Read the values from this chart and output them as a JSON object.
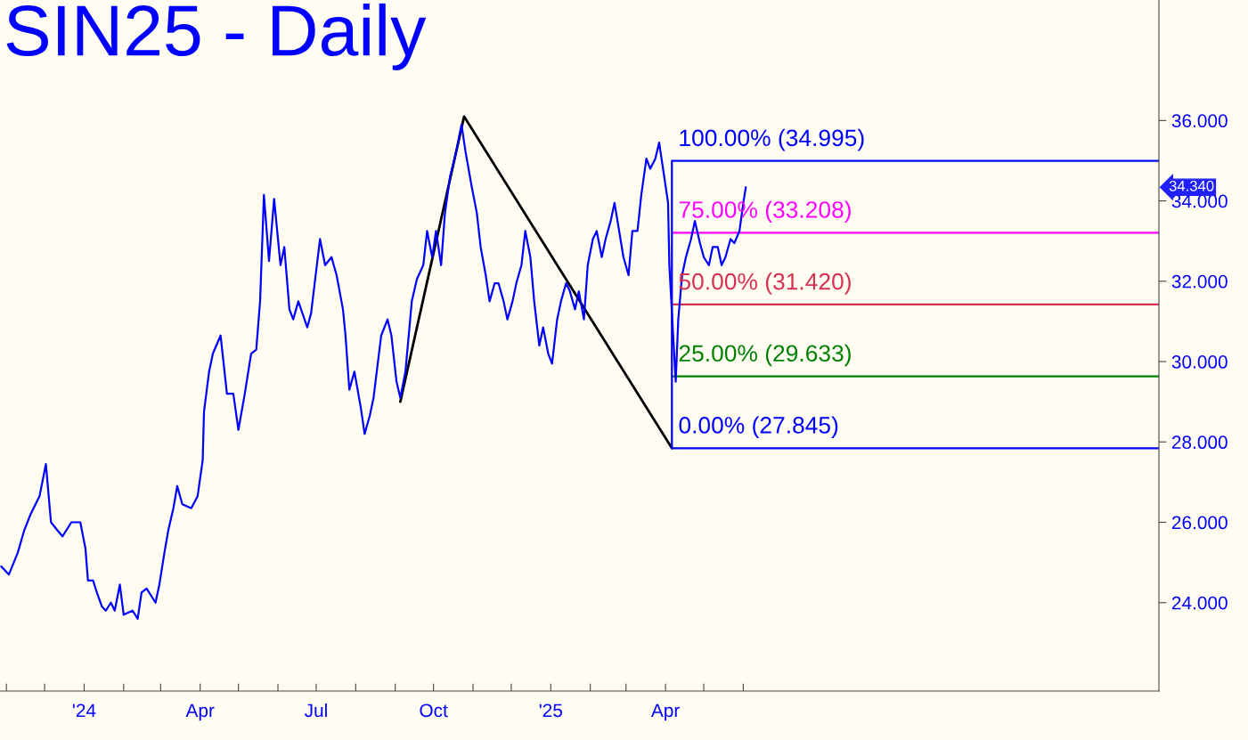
{
  "chart_data": {
    "type": "line",
    "title": "SIN25 - Daily",
    "xlim": [
      "2023-10-27",
      "2026-04-23"
    ],
    "ylim": [
      21.8,
      39.0
    ],
    "xticks": [
      {
        "value": "2023-11-01",
        "label": null
      },
      {
        "value": "2023-12-01",
        "label": null
      },
      {
        "value": "2024-01-01",
        "label": "'24"
      },
      {
        "value": "2024-02-01",
        "label": null
      },
      {
        "value": "2024-03-01",
        "label": null
      },
      {
        "value": "2024-04-01",
        "label": "Apr"
      },
      {
        "value": "2024-05-01",
        "label": null
      },
      {
        "value": "2024-06-01",
        "label": null
      },
      {
        "value": "2024-07-01",
        "label": "Jul"
      },
      {
        "value": "2024-08-01",
        "label": null
      },
      {
        "value": "2024-09-01",
        "label": null
      },
      {
        "value": "2024-10-01",
        "label": "Oct"
      },
      {
        "value": "2024-11-01",
        "label": null
      },
      {
        "value": "2024-12-01",
        "label": null
      },
      {
        "value": "2025-01-01",
        "label": "'25"
      },
      {
        "value": "2025-02-01",
        "label": null
      },
      {
        "value": "2025-03-01",
        "label": null
      },
      {
        "value": "2025-04-01",
        "label": "Apr"
      },
      {
        "value": "2025-05-01",
        "label": null
      },
      {
        "value": "2025-06-01",
        "label": null
      }
    ],
    "yticks": [
      {
        "value": 24,
        "label": "24.000"
      },
      {
        "value": 26,
        "label": "26.000"
      },
      {
        "value": 28,
        "label": "28.000"
      },
      {
        "value": 30,
        "label": "30.000"
      },
      {
        "value": 32,
        "label": "32.000"
      },
      {
        "value": 34,
        "label": "34.000"
      },
      {
        "value": 36,
        "label": "36.000"
      }
    ],
    "grid": false,
    "legend": false,
    "series": [
      {
        "color": "#0000ff",
        "x": [
          "2023-10-28",
          "2023-11-03",
          "2023-11-10",
          "2023-11-15",
          "2023-11-20",
          "2023-11-27",
          "2023-12-02",
          "2023-12-06",
          "2023-12-11",
          "2023-12-15",
          "2023-12-22",
          "2023-12-29",
          "2024-01-02",
          "2024-01-04",
          "2024-01-08",
          "2024-01-11",
          "2024-01-15",
          "2024-01-18",
          "2024-01-22",
          "2024-01-25",
          "2024-01-29",
          "2024-02-01",
          "2024-02-08",
          "2024-02-12",
          "2024-02-15",
          "2024-02-19",
          "2024-02-26",
          "2024-02-29",
          "2024-03-04",
          "2024-03-07",
          "2024-03-11",
          "2024-03-14",
          "2024-03-18",
          "2024-03-25",
          "2024-03-30",
          "2024-04-03",
          "2024-04-04",
          "2024-04-08",
          "2024-04-11",
          "2024-04-17",
          "2024-04-22",
          "2024-04-27",
          "2024-05-01",
          "2024-05-06",
          "2024-05-11",
          "2024-05-15",
          "2024-05-18",
          "2024-05-20",
          "2024-05-21",
          "2024-05-25",
          "2024-05-29",
          "2024-06-03",
          "2024-06-06",
          "2024-06-10",
          "2024-06-13",
          "2024-06-17",
          "2024-06-24",
          "2024-06-27",
          "2024-07-04",
          "2024-07-08",
          "2024-07-13",
          "2024-07-17",
          "2024-07-22",
          "2024-07-24",
          "2024-07-27",
          "2024-07-31",
          "2024-08-05",
          "2024-08-08",
          "2024-08-12",
          "2024-08-15",
          "2024-08-21",
          "2024-08-26",
          "2024-08-29",
          "2024-09-02",
          "2024-09-05",
          "2024-09-09",
          "2024-09-14",
          "2024-09-18",
          "2024-09-23",
          "2024-09-26",
          "2024-09-30",
          "2024-10-03",
          "2024-10-07",
          "2024-10-10",
          "2024-10-14",
          "2024-10-19",
          "2024-10-23",
          "2024-10-26",
          "2024-10-31",
          "2024-11-04",
          "2024-11-07",
          "2024-11-11",
          "2024-11-14",
          "2024-11-18",
          "2024-11-21",
          "2024-11-25",
          "2024-11-28",
          "2024-12-02",
          "2024-12-05",
          "2024-12-09",
          "2024-12-12",
          "2024-12-16",
          "2024-12-19",
          "2024-12-23",
          "2024-12-26",
          "2024-12-30",
          "2025-01-02",
          "2025-01-06",
          "2025-01-09",
          "2025-01-13",
          "2025-01-16",
          "2025-01-20",
          "2025-01-23",
          "2025-01-27",
          "2025-01-30",
          "2025-02-03",
          "2025-02-06",
          "2025-02-10",
          "2025-02-13",
          "2025-02-17",
          "2025-02-20",
          "2025-02-27",
          "2025-03-03",
          "2025-03-06",
          "2025-03-10",
          "2025-03-13",
          "2025-03-17",
          "2025-03-20",
          "2025-03-24",
          "2025-03-27",
          "2025-03-31",
          "2025-04-03",
          "2025-04-04",
          "2025-04-07",
          "2025-04-09",
          "2025-04-11",
          "2025-04-14",
          "2025-04-17",
          "2025-04-21",
          "2025-04-24",
          "2025-04-28",
          "2025-05-01",
          "2025-05-05",
          "2025-05-08",
          "2025-05-12",
          "2025-05-15",
          "2025-05-18",
          "2025-05-22",
          "2025-05-25",
          "2025-05-29",
          "2025-06-01",
          "2025-06-03"
        ],
        "values": [
          24.9,
          24.7,
          25.25,
          25.8,
          26.2,
          26.65,
          27.45,
          26,
          25.8,
          25.65,
          26,
          26,
          25.35,
          24.55,
          24.55,
          24.25,
          23.9,
          23.8,
          24,
          23.8,
          24.45,
          23.7,
          23.8,
          23.6,
          24.25,
          24.35,
          24,
          24.45,
          25.25,
          25.8,
          26.35,
          26.9,
          26.45,
          26.35,
          26.65,
          27.55,
          28.75,
          29.75,
          30.2,
          30.65,
          29.2,
          29.2,
          28.3,
          29.2,
          30.2,
          30.3,
          31.5,
          33.25,
          34.15,
          32.5,
          34.05,
          32.4,
          32.85,
          31.3,
          31.05,
          31.5,
          30.85,
          31.2,
          33.05,
          32.4,
          32.6,
          32.15,
          31.3,
          30.65,
          29.3,
          29.75,
          28.85,
          28.2,
          28.65,
          29.1,
          30.65,
          31.05,
          30.65,
          29.5,
          29.1,
          29.75,
          31.5,
          32.05,
          32.4,
          33.25,
          32.6,
          33.25,
          32.4,
          33.7,
          34.6,
          35.25,
          35.9,
          35.25,
          34.35,
          33.7,
          32.85,
          32.15,
          31.5,
          31.95,
          31.95,
          31.5,
          31.05,
          31.5,
          31.95,
          32.4,
          33.25,
          32.6,
          31.5,
          30.4,
          30.85,
          30.2,
          29.95,
          31.05,
          31.5,
          31.95,
          31.75,
          31.3,
          31.75,
          31.05,
          32.4,
          33.05,
          33.25,
          32.6,
          33.05,
          33.5,
          33.95,
          32.6,
          32.15,
          33.25,
          33.25,
          34.15,
          35.05,
          34.8,
          35.05,
          35.45,
          34.6,
          33.95,
          32.4,
          30.65,
          29.5,
          31.05,
          32.15,
          32.6,
          33.05,
          33.5,
          32.95,
          32.6,
          32.4,
          32.85,
          32.85,
          32.4,
          32.6,
          33.05,
          32.95,
          33.25,
          33.95,
          34.34
        ]
      },
      {
        "color": "#000000",
        "x": [
          "2024-09-05",
          "2024-10-25",
          "2025-04-06"
        ],
        "values": [
          29.0,
          36.1,
          27.845
        ]
      },
      {
        "color": "#0000ff",
        "x": [
          "2025-04-06",
          "2025-04-06"
        ],
        "values": [
          27.845,
          34.995
        ]
      }
    ],
    "ref_lines": [
      {
        "axis": "y",
        "value": 34.995,
        "label": "100.00% (34.995)",
        "color": "#0000ff"
      },
      {
        "axis": "y",
        "value": 33.208,
        "label": "75.00% (33.208)",
        "color": "#ff00ff"
      },
      {
        "axis": "y",
        "value": 31.42,
        "label": "50.00% (31.420)",
        "color": "#d7304f"
      },
      {
        "axis": "y",
        "value": 29.633,
        "label": "25.00% (29.633)",
        "color": "#008000"
      },
      {
        "axis": "y",
        "value": 27.845,
        "label": "0.00% (27.845)",
        "color": "#0000ff"
      }
    ],
    "annotations": [
      "34.340"
    ]
  }
}
